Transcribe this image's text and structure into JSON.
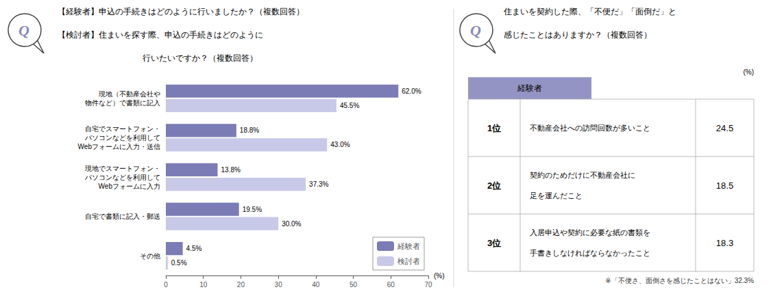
{
  "chart_data": [
    {
      "type": "bar",
      "orientation": "horizontal",
      "title": [
        "【経験者】申込の手続きはどのように行いましたか？（複数回答）",
        "【検討者】住まいを探す際、申込の手続きはどのように",
        "行いたいですか？（複数回答）"
      ],
      "annotations": [
        "Q"
      ],
      "categories": [
        "現地（不動産会社や\n物件など）で書類に記入",
        "自宅でスマートフォン・\nパソコンなどを利用して\nWebフォームに入力・送信",
        "現地でスマートフォン・\nパソコンなどを利用して\nWebフォームに入力",
        "自宅で書類に記入・郵送",
        "その他"
      ],
      "series": [
        {
          "name": "経験者",
          "color": "#7b7bb5",
          "values": [
            62.0,
            18.8,
            13.8,
            19.5,
            4.5
          ],
          "value_labels": [
            "62.0%",
            "18.8%",
            "13.8%",
            "19.5%",
            "4.5%"
          ]
        },
        {
          "name": "検討者",
          "color": "#c8c8e8",
          "values": [
            45.5,
            43.0,
            37.3,
            30.0,
            0.5
          ],
          "value_labels": [
            "45.5%",
            "43.0%",
            "37.3%",
            "30.0%",
            "0.5%"
          ]
        }
      ],
      "xlim": [
        0,
        70
      ],
      "xticks": [
        0,
        10,
        20,
        30,
        40,
        50,
        60,
        70
      ],
      "xlabel": "(%)",
      "data_labels": true,
      "legend": "lower right",
      "grid": false
    },
    {
      "type": "table",
      "title": [
        "住まいを契約した際、「不便だ」「面倒だ」と",
        "感じたことはありますか？（複数回答）"
      ],
      "annotations": [
        "Q",
        "※「不便さ、面倒さを感じたことはない」32.3%"
      ],
      "header": "経験者",
      "header_color": "#9494c4",
      "unit": "(%)",
      "rows": [
        {
          "rank": "1位",
          "text": [
            "不動産会社への訪問回数が多いこと"
          ],
          "value": 24.5
        },
        {
          "rank": "2位",
          "text": [
            "契約のためだけに不動産会社に",
            "足を運んだこと"
          ],
          "value": 18.5
        },
        {
          "rank": "3位",
          "text": [
            "入居申込や契約に必要な紙の書類を",
            "手書きしなければならなかったこと"
          ],
          "value": 18.3
        }
      ]
    }
  ]
}
